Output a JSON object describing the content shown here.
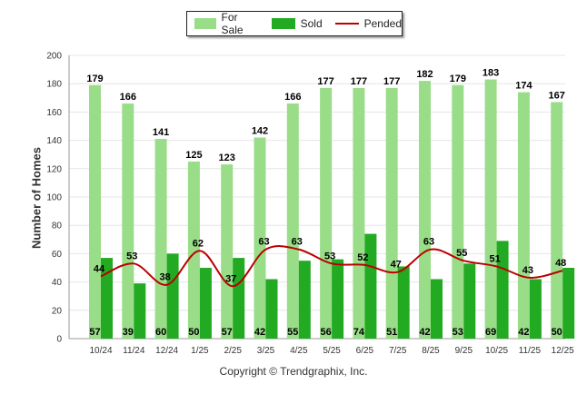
{
  "chart_data": {
    "type": "bar",
    "title": "",
    "xlabel": "",
    "ylabel": "Number of Homes",
    "ylim": [
      0,
      200
    ],
    "yticks": [
      0,
      20,
      40,
      60,
      80,
      100,
      120,
      140,
      160,
      180,
      200
    ],
    "categories": [
      "10/24",
      "11/24",
      "12/24",
      "1/25",
      "2/25",
      "3/25",
      "4/25",
      "5/25",
      "6/25",
      "7/25",
      "8/25",
      "9/25",
      "10/25",
      "11/25",
      "12/25"
    ],
    "series": [
      {
        "name": "For Sale",
        "kind": "bar",
        "color": "#99dd88",
        "values": [
          179,
          166,
          141,
          125,
          123,
          142,
          166,
          177,
          177,
          177,
          182,
          179,
          183,
          174,
          167
        ]
      },
      {
        "name": "Sold",
        "kind": "bar",
        "color": "#22aa22",
        "values": [
          57,
          39,
          60,
          50,
          57,
          42,
          55,
          56,
          74,
          51,
          42,
          53,
          69,
          42,
          50
        ]
      },
      {
        "name": "Pended",
        "kind": "line",
        "color": "#bb0000",
        "values": [
          44,
          53,
          38,
          62,
          37,
          63,
          63,
          53,
          52,
          47,
          63,
          55,
          51,
          43,
          48
        ]
      }
    ],
    "legend_position": "top-center"
  },
  "copyright": "Copyright © Trendgraphix, Inc."
}
